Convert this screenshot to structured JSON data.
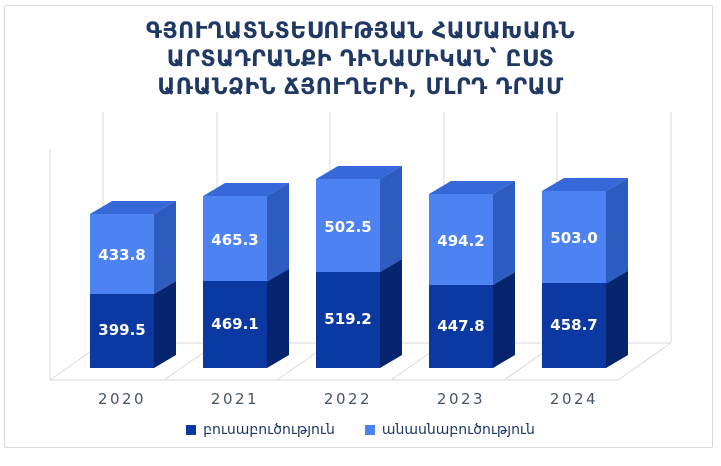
{
  "chart": {
    "title_lines": [
      "ԳՅՈՒՂԱՏՆՏԵՍՈՒԹՅԱՆ ՀԱՄԱԽԱՌՆ",
      "ԱՐՏԱԴՐԱՆՔԻ ԴԻՆԱՄԻԿԱՆ՝ ԸՍՏ",
      "ԱՌԱՆՁԻՆ ՃՅՈՒՂԵՐԻ, ՄԼՐԴ ԴՐԱՄ"
    ],
    "title_color": "#1F3864",
    "frame_border_color": "#D9D9D9",
    "gridline_color": "#D9D9D9",
    "axis_label_color": "#44546A",
    "data_label_color": "#FFFFFF"
  },
  "chart_data": {
    "type": "bar",
    "subtype": "stacked-3d-column",
    "title": "ԳՅՈՒՂԱՏՆՏԵՍՈՒԹՅԱՆ ՀԱՄԱԽԱՌՆ ԱՐՏԱԴՐԱՆՔԻ ԴԻՆԱՄԻԿԱՆ՝ ԸՍՏ ԱՌԱՆՁԻՆ ՃՅՈՒՂԵՐԻ, ՄԼՐԴ ԴՐԱՄ",
    "categories": [
      "2020",
      "2021",
      "2022",
      "2023",
      "2024"
    ],
    "series": [
      {
        "name": "բուսաբուծություն",
        "values": [
          399.5,
          469.1,
          519.2,
          447.8,
          458.7
        ],
        "front_color": "#0C38A2",
        "side_color": "#07246E"
      },
      {
        "name": "անասնաբուծություն",
        "values": [
          433.8,
          465.3,
          502.5,
          494.2,
          503.0
        ],
        "front_color": "#4C82F2",
        "side_color": "#2E5BC0",
        "top_color": "#3768D8"
      }
    ],
    "data_labels": true,
    "data_label_decimals": 1,
    "legend_position": "bottom",
    "value_axis_visible": false,
    "gridlines": "vertical-category-backwall"
  }
}
